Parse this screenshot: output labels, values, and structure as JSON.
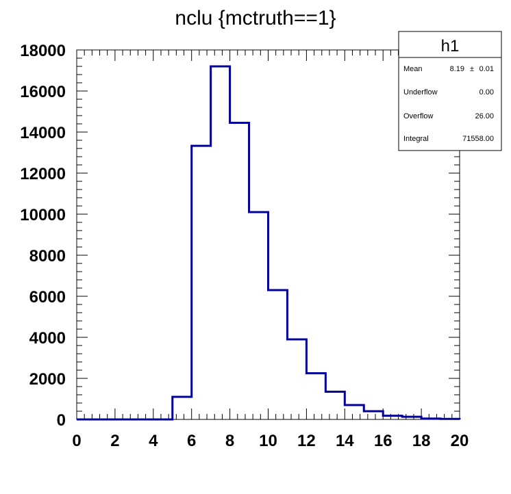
{
  "chart_data": {
    "type": "bar",
    "title": "nclu {mctruth==1}",
    "xlabel": "",
    "ylabel": "",
    "xlim": [
      0,
      20
    ],
    "ylim": [
      0,
      18000
    ],
    "bin_edges": [
      0,
      1,
      2,
      3,
      4,
      5,
      6,
      7,
      8,
      9,
      10,
      11,
      12,
      13,
      14,
      15,
      16,
      17,
      18,
      19,
      20
    ],
    "values": [
      0,
      0,
      0,
      0,
      0,
      1100,
      13330,
      17200,
      14450,
      10100,
      6300,
      3900,
      2250,
      1350,
      700,
      400,
      180,
      130,
      40,
      25
    ],
    "x_ticks": [
      "0",
      "2",
      "4",
      "6",
      "8",
      "10",
      "12",
      "14",
      "16",
      "18",
      "20"
    ],
    "y_ticks": [
      "0",
      "2000",
      "4000",
      "6000",
      "8000",
      "10000",
      "12000",
      "14000",
      "16000",
      "18000"
    ],
    "line_color": "#000099",
    "grid": false,
    "legend": "none",
    "stats_box": {
      "name": "h1",
      "placement": "top-right",
      "rows": [
        {
          "label": "Mean",
          "value": "8.19",
          "sep": "±",
          "error": "0.01"
        },
        {
          "label": "Underflow",
          "value": "0.00"
        },
        {
          "label": "Overflow",
          "value": "26.00"
        },
        {
          "label": "Integral",
          "value": "71558.00"
        }
      ]
    }
  }
}
